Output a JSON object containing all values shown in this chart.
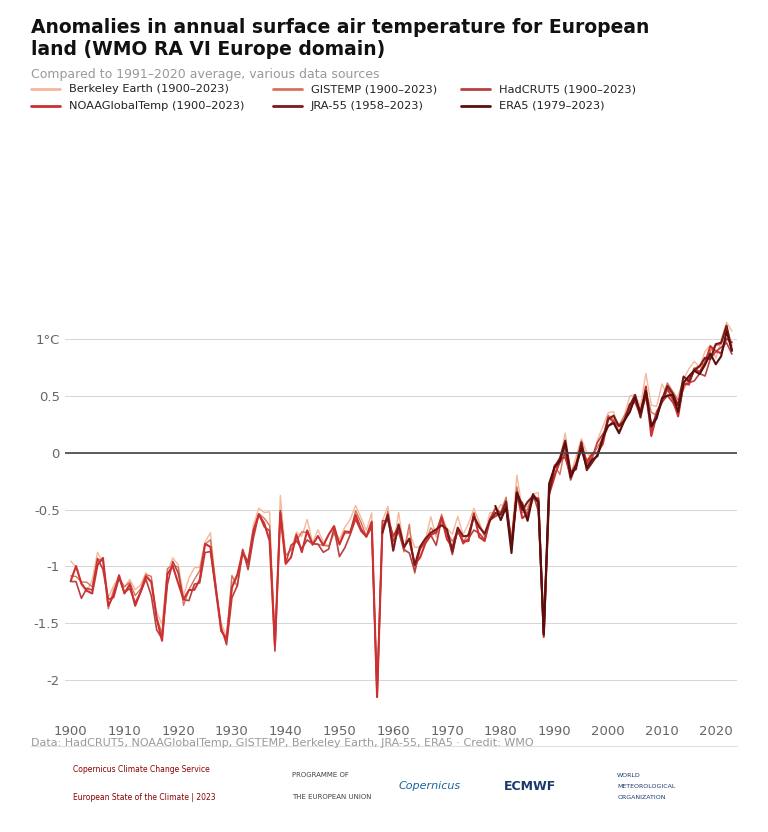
{
  "title": "Anomalies in annual surface air temperature for European\nland (WMO RA VI Europe domain)",
  "subtitle": "Compared to 1991–2020 average, various data sources",
  "footnote": "Data: HadCRUT5, NOAAGlobalTemp, GISTEMP, Berkeley Earth, JRA-55, ERA5 · Credit: WMO",
  "legend_items": [
    [
      "Berkeley Earth (1900–2023)",
      "#f5b89a"
    ],
    [
      "GISTEMP (1900–2023)",
      "#d4735a"
    ],
    [
      "HadCRUT5 (1900–2023)",
      "#b84040"
    ],
    [
      "NOAAGlobalTemp (1900–2023)",
      "#cc3030"
    ],
    [
      "JRA-55 (1958–2023)",
      "#7a1a1a"
    ],
    [
      "ERA5 (1979–2023)",
      "#5a0f0f"
    ]
  ],
  "series_colors": {
    "Berkeley Earth": "#f5b89a",
    "GISTEMP": "#d4735a",
    "HadCRUT5": "#b84040",
    "NOAAGlobalTemp": "#cc3030",
    "JRA-55": "#7a1a1a",
    "ERA5": "#5a0f0f"
  },
  "series_lw": {
    "Berkeley Earth": 1.0,
    "GISTEMP": 1.0,
    "HadCRUT5": 1.2,
    "NOAAGlobalTemp": 1.5,
    "JRA-55": 1.5,
    "ERA5": 1.5
  },
  "series_zorder": {
    "Berkeley Earth": 2,
    "GISTEMP": 3,
    "HadCRUT5": 4,
    "NOAAGlobalTemp": 5,
    "JRA-55": 6,
    "ERA5": 7
  },
  "series_start": {
    "Berkeley Earth": 1900,
    "GISTEMP": 1900,
    "HadCRUT5": 1900,
    "NOAAGlobalTemp": 1900,
    "JRA-55": 1958,
    "ERA5": 1979
  },
  "xlim": [
    1899,
    2024
  ],
  "ylim": [
    -2.35,
    1.35
  ],
  "yticks": [
    -2.0,
    -1.5,
    -1.0,
    -0.5,
    0.0,
    0.5,
    1.0
  ],
  "ytick_labels": [
    "-2",
    "-1.5",
    "-1",
    "-0.5",
    "0",
    "0.5",
    "1°C"
  ],
  "xticks": [
    1900,
    1910,
    1920,
    1930,
    1940,
    1950,
    1960,
    1970,
    1980,
    1990,
    2000,
    2010,
    2020
  ],
  "background_color": "#ffffff",
  "grid_color": "#d0d0d0",
  "zeroline_color": "#444444",
  "title_color": "#111111",
  "subtitle_color": "#999999",
  "footnote_color": "#999999",
  "tick_color": "#666666"
}
